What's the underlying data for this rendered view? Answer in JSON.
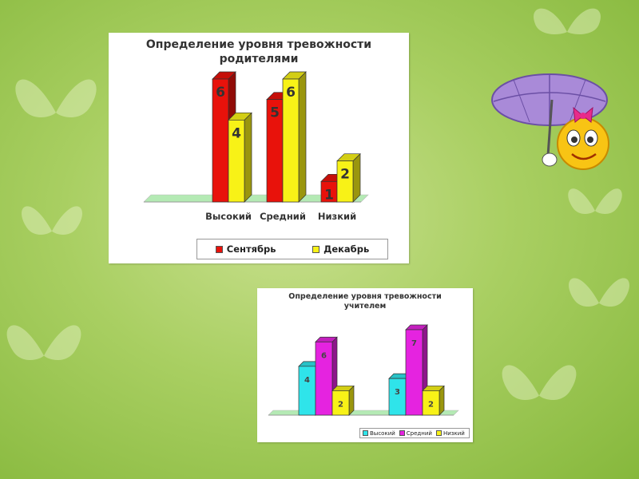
{
  "colors": {
    "september": "#e8120b",
    "december": "#f8f217",
    "high": "#2fe4ea",
    "medium": "#e523e0",
    "low": "#f8f217",
    "floor": "#b4eab4"
  },
  "chart_data": [
    {
      "type": "bar",
      "title_lines": [
        "Определение уровня тревожности",
        "родителями"
      ],
      "categories": [
        "Высокий",
        "Средний",
        "Низкий"
      ],
      "series": [
        {
          "name": "Сентябрь",
          "values": [
            6,
            5,
            1
          ]
        },
        {
          "name": "Декабрь",
          "values": [
            4,
            6,
            2
          ]
        }
      ],
      "ylim": [
        0,
        6
      ],
      "legend_position": "bottom"
    },
    {
      "type": "bar",
      "title_lines": [
        "Определение уровня тревожности",
        "учителем"
      ],
      "categories": [
        "",
        ""
      ],
      "series": [
        {
          "name": "Высокий",
          "values": [
            4,
            3
          ]
        },
        {
          "name": "Средний",
          "values": [
            6,
            7
          ]
        },
        {
          "name": "Низкий",
          "values": [
            2,
            2
          ]
        }
      ],
      "ylim": [
        0,
        7
      ],
      "legend_position": "bottom-right"
    }
  ]
}
